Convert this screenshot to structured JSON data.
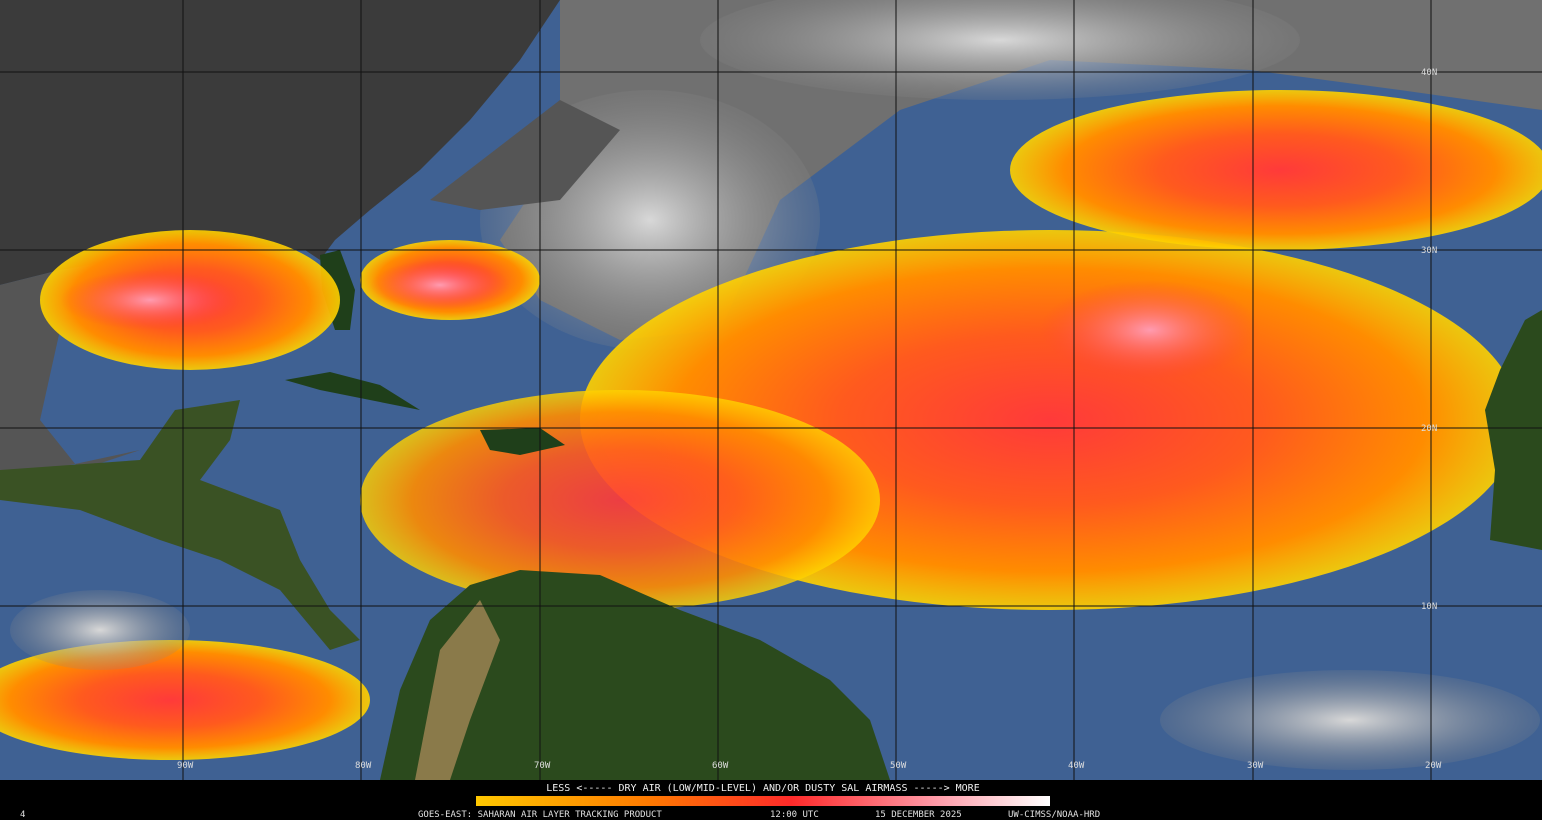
{
  "map": {
    "lat_labels": [
      "40N",
      "30N",
      "20N",
      "10N"
    ],
    "lon_labels": [
      "90W",
      "80W",
      "70W",
      "60W",
      "50W",
      "40W",
      "30W",
      "20W"
    ],
    "legend_text": "LESS <----- DRY AIR (LOW/MID-LEVEL) AND/OR DUSTY SAL AIRMASS -----> MORE",
    "footer": {
      "corner": "4",
      "product": "GOES-EAST: SAHARAN AIR LAYER TRACKING PRODUCT",
      "time": "12:00 UTC",
      "date": "15 DECEMBER 2025",
      "credit": "UW-CIMSS/NOAA-HRD"
    }
  }
}
